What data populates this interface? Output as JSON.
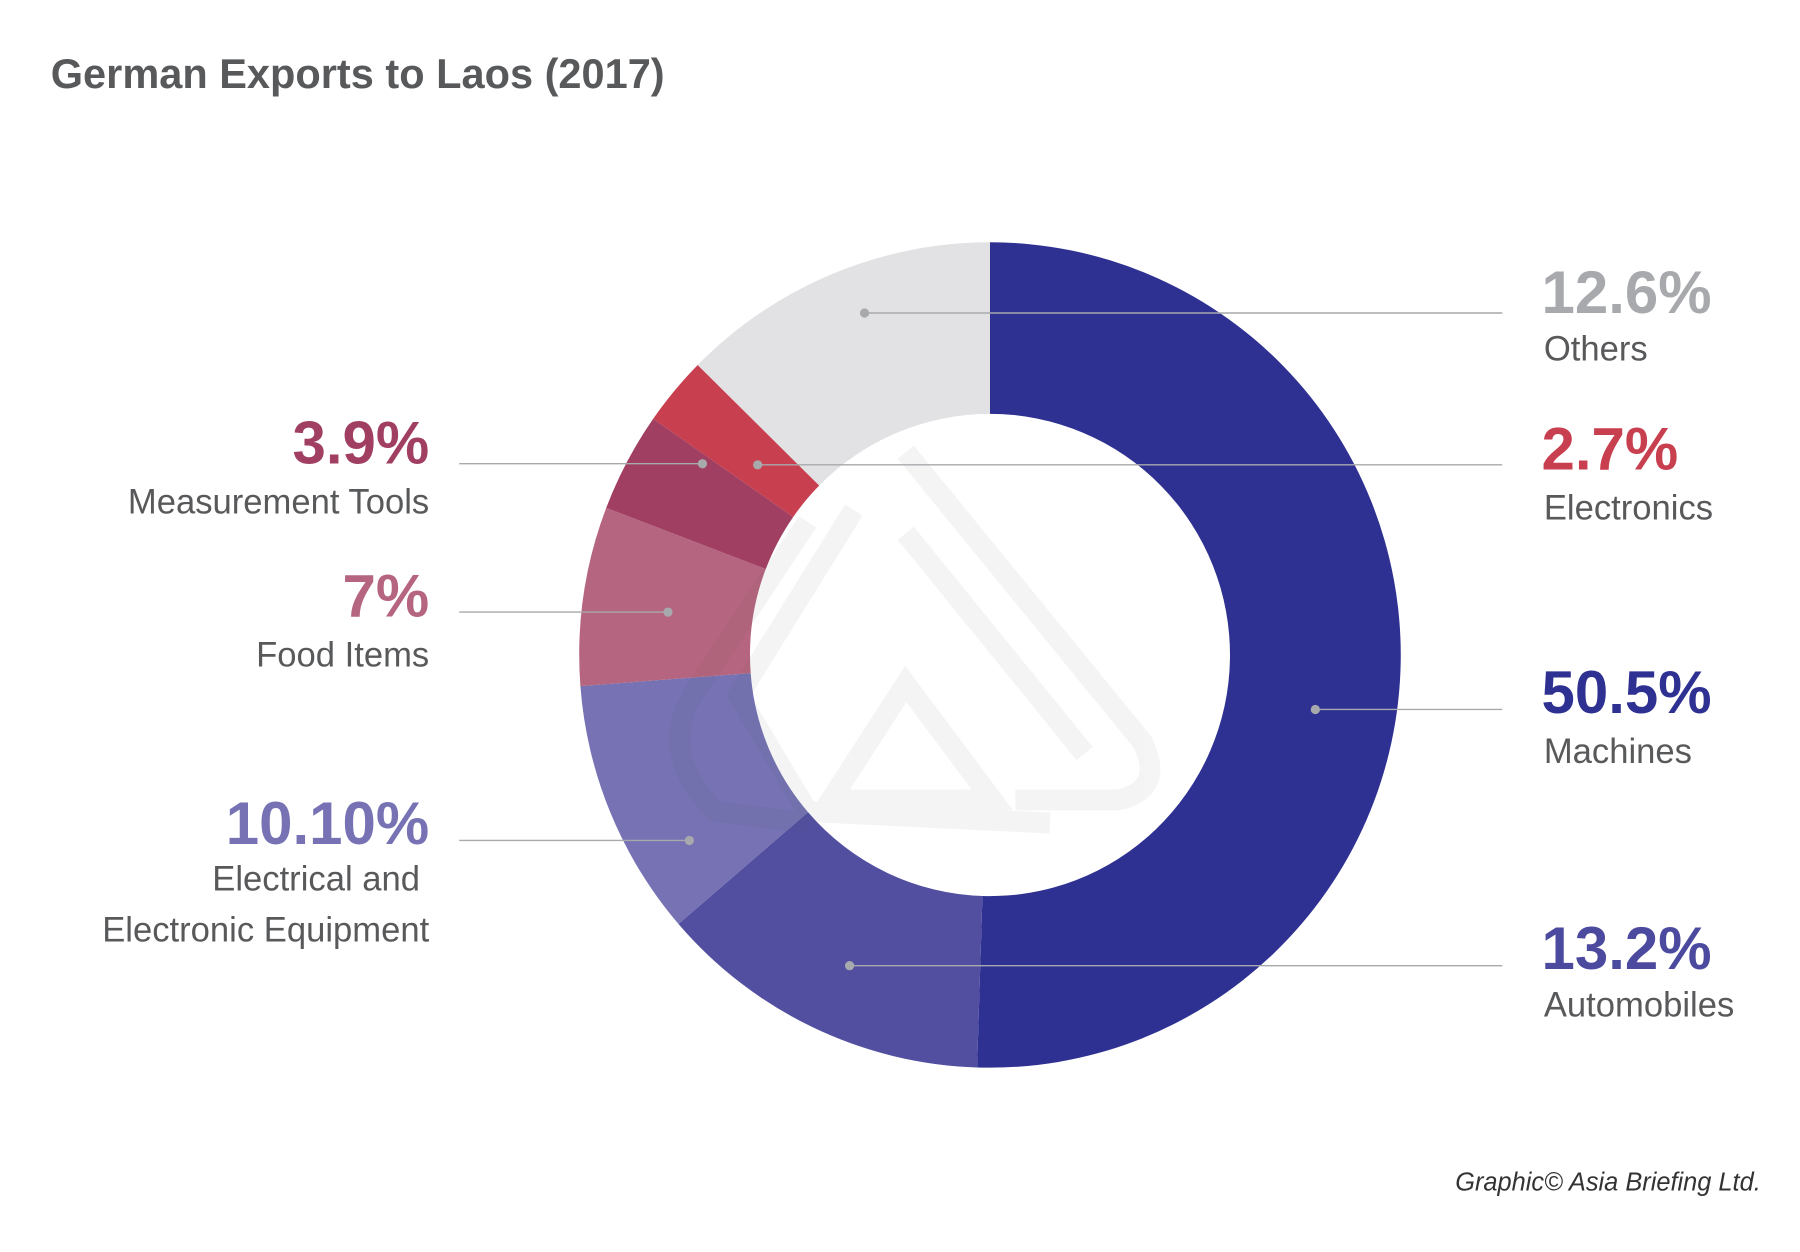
{
  "chart_data": {
    "type": "pie",
    "variant": "donut",
    "title": "German Exports to Laos (2017)",
    "start": "top, clockwise",
    "slices": [
      {
        "label": "Machines",
        "value": 50.5,
        "display": "50.5%",
        "color": "#2e3192",
        "label_color": "#2e3192",
        "side": "right"
      },
      {
        "label": "Automobiles",
        "value": 13.2,
        "display": "13.2%",
        "color": "#524fa1",
        "label_color": "#4c4a9e",
        "side": "right"
      },
      {
        "label": "Electrical and Electronic Equipment",
        "label_lines": [
          "Electrical and",
          "Electronic Equipment"
        ],
        "value": 10.1,
        "display": "10.10%",
        "color": "#7672b4",
        "label_color": "#7672b4",
        "side": "left"
      },
      {
        "label": "Food Items",
        "value": 7,
        "display": "7%",
        "color": "#b5657f",
        "label_color": "#b5657f",
        "side": "left"
      },
      {
        "label": "Measurement Tools",
        "value": 3.9,
        "display": "3.9%",
        "color": "#a03f62",
        "label_color": "#a03f62",
        "side": "left"
      },
      {
        "label": "Electronics",
        "value": 2.7,
        "display": "2.7%",
        "color": "#c8404f",
        "label_color": "#c8404f",
        "side": "right"
      },
      {
        "label": "Others",
        "value": 12.6,
        "display": "12.6%",
        "color": "#e2e2e4",
        "label_color": "#a7a9ac",
        "side": "right"
      }
    ]
  },
  "credit": "Graphic© Asia Briefing Ltd."
}
